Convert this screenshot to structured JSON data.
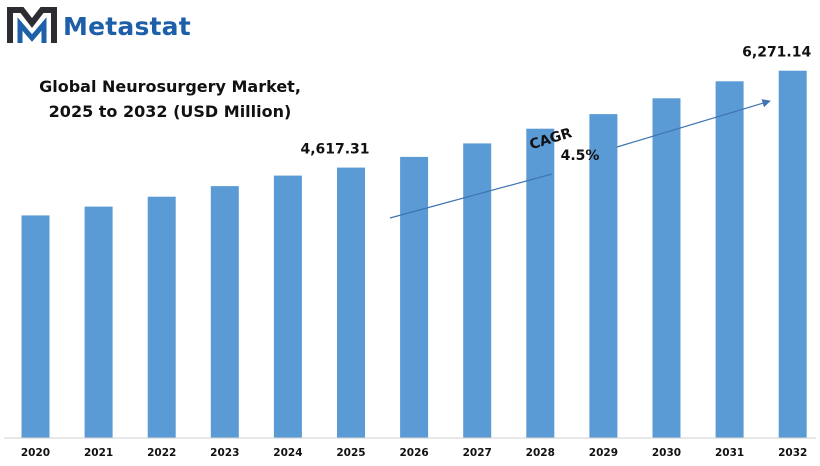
{
  "brand": {
    "name": "Metastat",
    "logo_icon": "metastat-m-logo-icon",
    "colors": {
      "dark": "#2b2d33",
      "blue": "#1d5fa8"
    }
  },
  "chart_data": {
    "type": "bar",
    "title_lines": [
      "Global Neurosurgery Market,",
      "2025 to 2032 (USD Million)"
    ],
    "categories": [
      "2020",
      "2021",
      "2022",
      "2023",
      "2024",
      "2025",
      "2026",
      "2027",
      "2028",
      "2029",
      "2030",
      "2031",
      "2032"
    ],
    "values": [
      3800,
      3950,
      4120,
      4300,
      4480,
      4617.31,
      4800,
      5030,
      5280,
      5530,
      5800,
      6090,
      6271.14
    ],
    "ylim": [
      0,
      7000
    ],
    "bar_color": "#5b9bd5",
    "grid": false,
    "labels": [
      {
        "category": "2025",
        "text": "4,617.31"
      },
      {
        "category": "2032",
        "text": "6,271.14"
      }
    ],
    "cagr": {
      "label": "CAGR",
      "value": "4.5%"
    },
    "xlabel": "",
    "ylabel": ""
  }
}
